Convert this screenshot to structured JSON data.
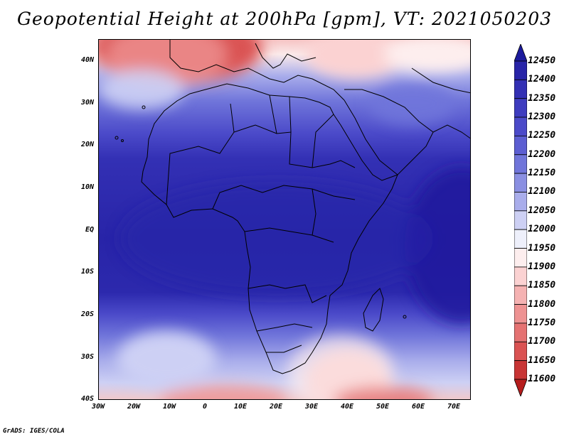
{
  "title": "Geopotential Height at 200hPa [gpm], VT: 2021050203",
  "credit": "GrADS: IGES/COLA",
  "map": {
    "lon_range": [
      -30,
      75
    ],
    "lat_range": [
      -40,
      45
    ],
    "lat_ticks": [
      "40N",
      "30N",
      "20N",
      "10N",
      "EQ",
      "10S",
      "20S",
      "30S",
      "40S"
    ],
    "lon_ticks": [
      "30W",
      "20W",
      "10W",
      "0",
      "10E",
      "20E",
      "30E",
      "40E",
      "50E",
      "60E",
      "70E"
    ]
  },
  "colorbar": {
    "levels": [
      "12450",
      "12400",
      "12350",
      "12300",
      "12250",
      "12200",
      "12150",
      "12100",
      "12050",
      "12000",
      "11950",
      "11900",
      "11850",
      "11800",
      "11750",
      "11700",
      "11650",
      "11600"
    ],
    "colors": [
      "#1c1a9c",
      "#2824a8",
      "#3330b4",
      "#3e3cbf",
      "#4b4ac9",
      "#5c5ed2",
      "#7075da",
      "#8a8fe2",
      "#a9adeb",
      "#cdd0f4",
      "#eef0fb",
      "#fdeeee",
      "#fbd2d2",
      "#f5b2b2",
      "#ee9292",
      "#e57272",
      "#da5252",
      "#c83535",
      "#b51d1d"
    ]
  }
}
